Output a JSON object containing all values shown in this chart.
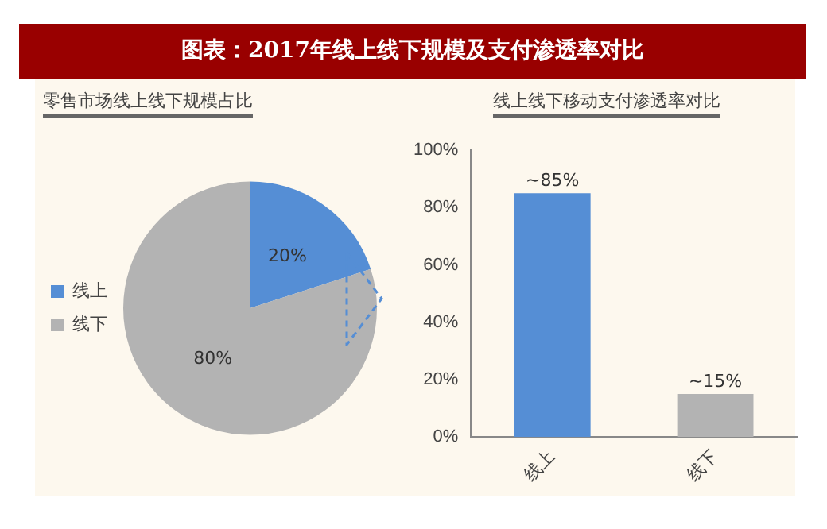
{
  "chart_data": [
    {
      "type": "pie",
      "title": "图表：2017年线上线下规模及支付渗透率对比",
      "subtitle": "零售市场线上线下规模占比",
      "categories": [
        "线上",
        "线下"
      ],
      "values": [
        20,
        80
      ],
      "colors": [
        "#558ed5",
        "#b3b3b3"
      ],
      "value_labels": [
        "20%",
        "80%"
      ],
      "legend": "left"
    },
    {
      "type": "bar",
      "title": "线上线下移动支付渗透率对比",
      "categories": [
        "线上",
        "线下"
      ],
      "values": [
        85,
        15
      ],
      "colors": [
        "#558ed5",
        "#b3b3b3"
      ],
      "value_labels": [
        "~85%",
        "~15%"
      ],
      "ylim": [
        0,
        100
      ],
      "yticks": [
        {
          "value": 0,
          "label": "0%"
        },
        {
          "value": 20,
          "label": "20%"
        },
        {
          "value": 40,
          "label": "40%"
        },
        {
          "value": 60,
          "label": "60%"
        },
        {
          "value": 80,
          "label": "80%"
        },
        {
          "value": 100,
          "label": "100%"
        }
      ],
      "grid": false,
      "legend": false
    }
  ]
}
